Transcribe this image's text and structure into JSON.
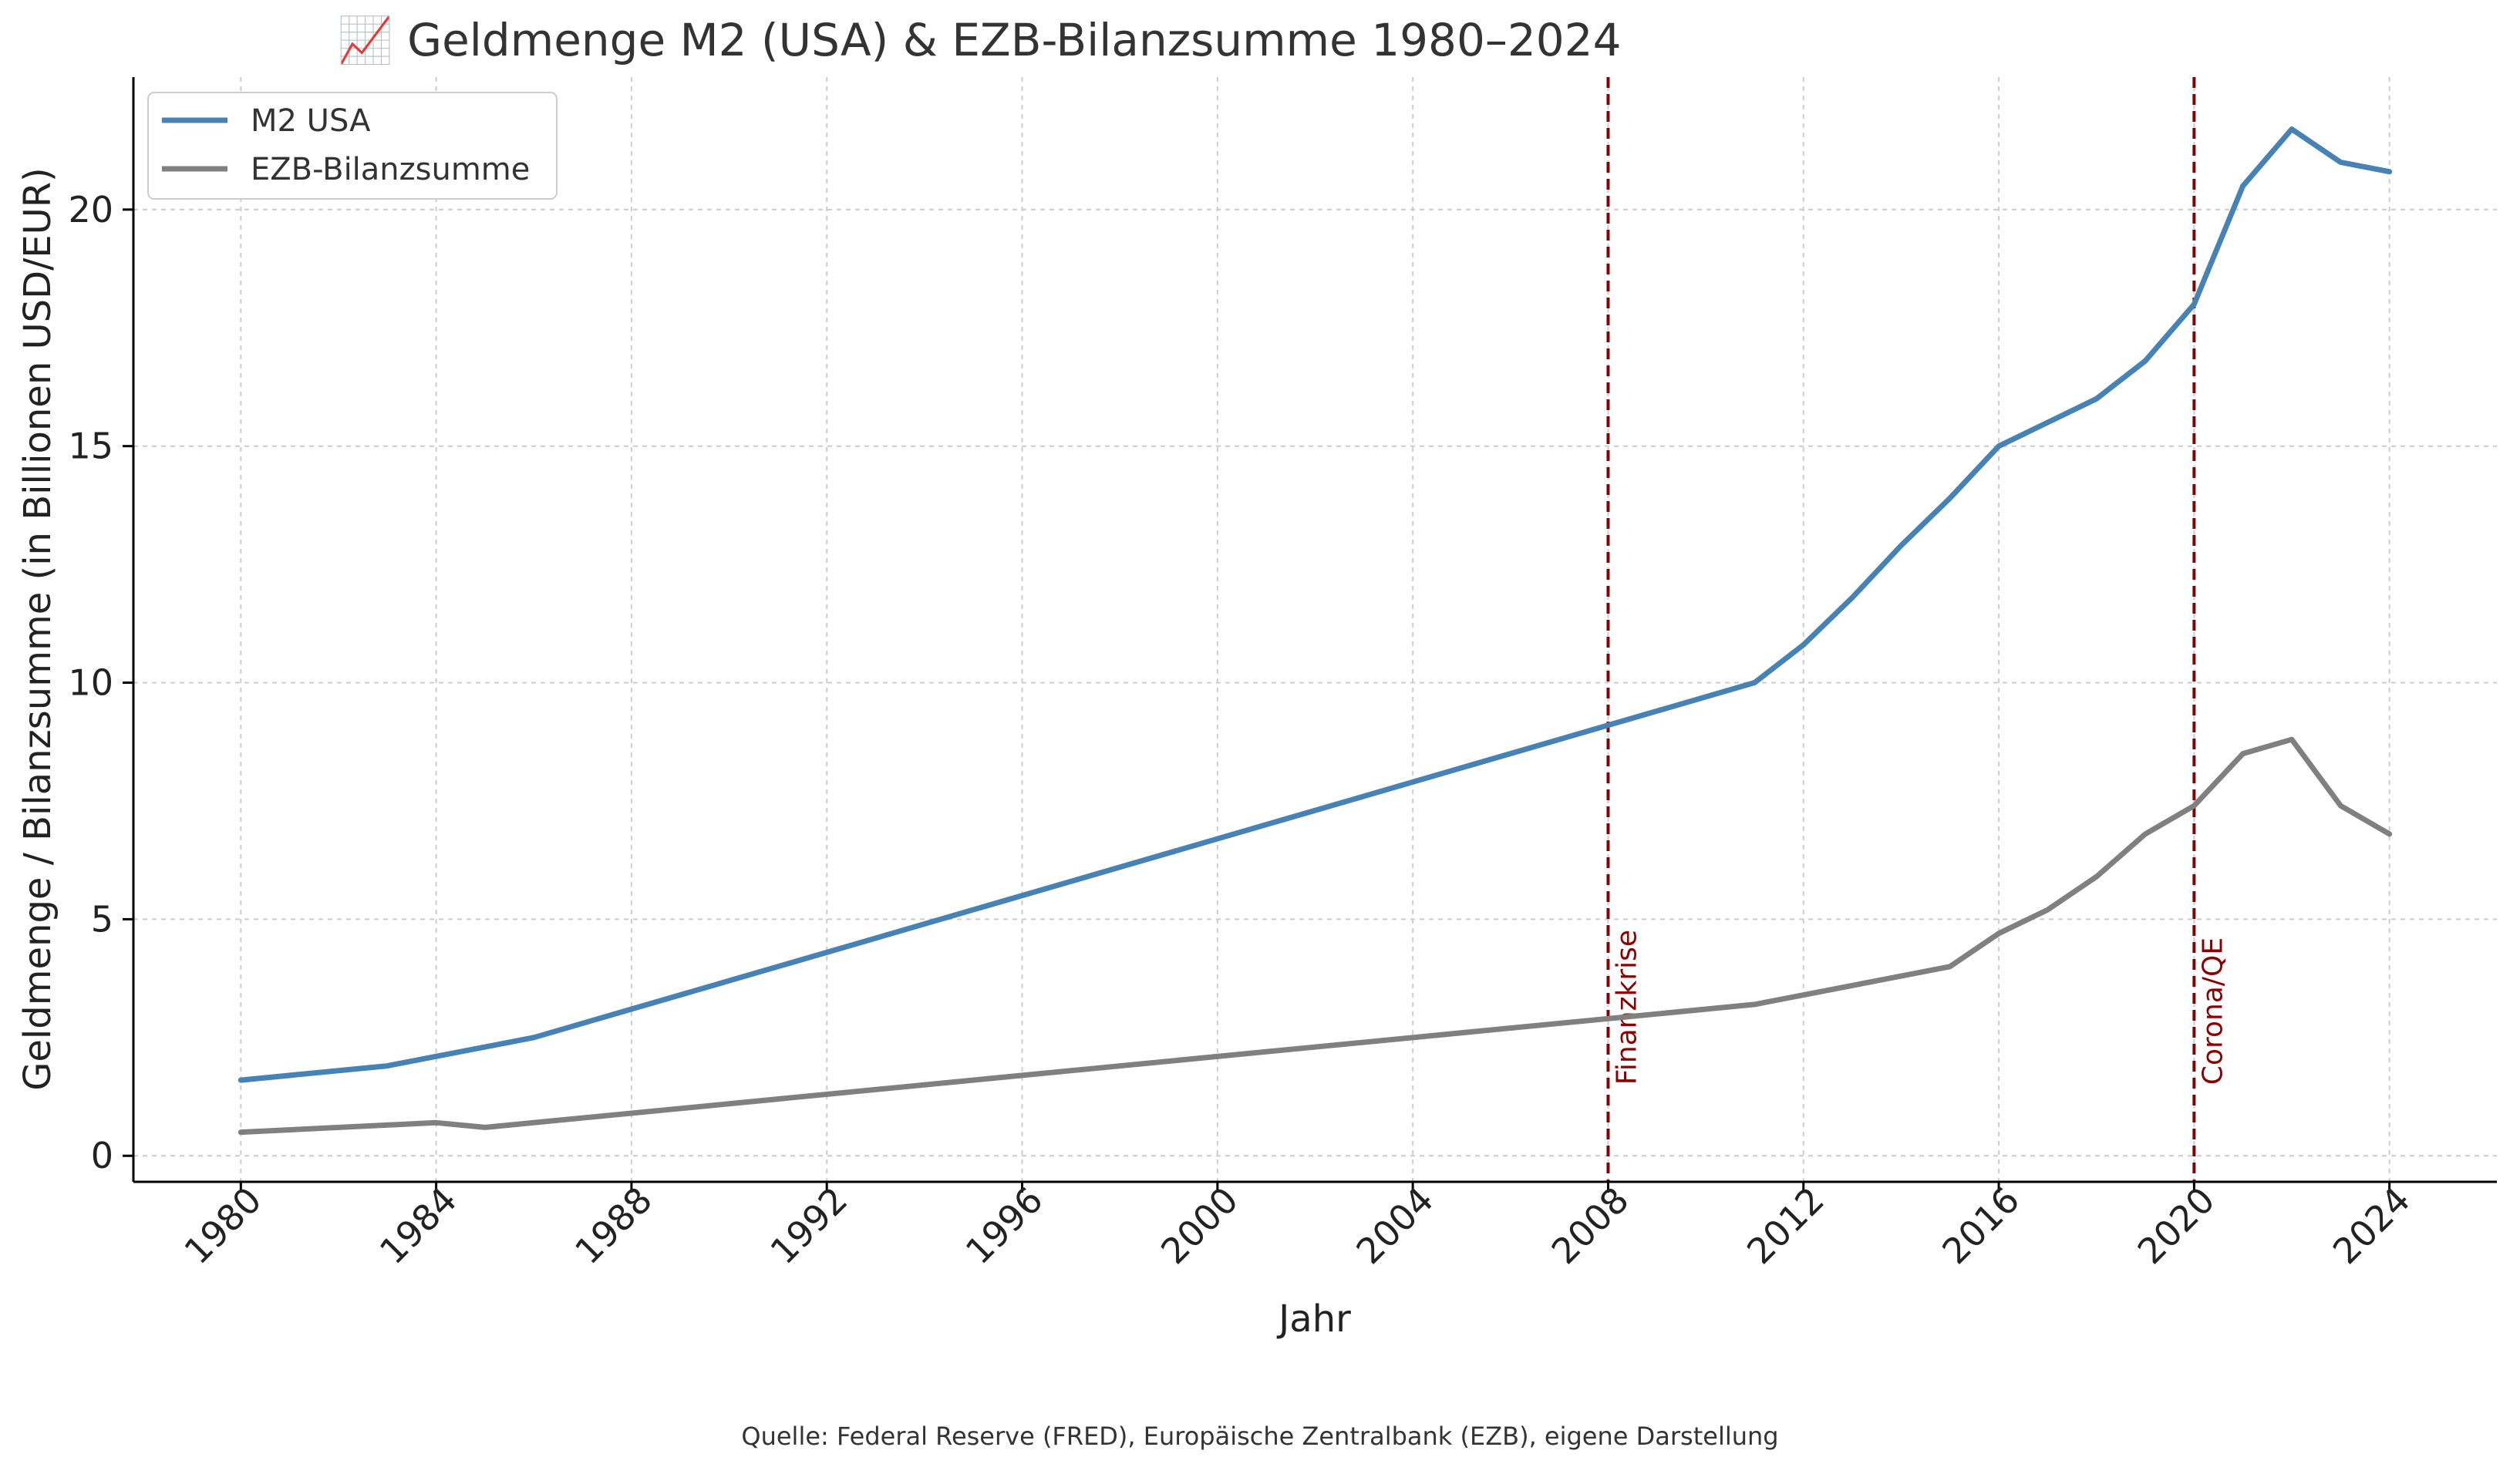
{
  "chart_data": {
    "type": "line",
    "title": "📈 Geldmenge M2 (USA) & EZB-Bilanzsumme 1980–2024",
    "xlabel": "Jahr",
    "ylabel": "Geldmenge / Bilanzsumme (in Billionen USD/EUR)",
    "xlim": [
      1977.8,
      2026.2
    ],
    "ylim": [
      -0.55,
      22.8
    ],
    "x_ticks": [
      1980,
      1984,
      1988,
      1992,
      1996,
      2000,
      2004,
      2008,
      2012,
      2016,
      2020,
      2024
    ],
    "y_ticks": [
      0,
      5,
      10,
      15,
      20
    ],
    "grid": true,
    "legend_position": "top-left",
    "series": [
      {
        "name": "M2 USA",
        "color": "#4682b4",
        "x": [
          1980,
          1983,
          1986,
          2011,
          2012,
          2013,
          2014,
          2015,
          2016,
          2017,
          2018,
          2019,
          2020,
          2021,
          2022,
          2023,
          2024
        ],
        "values": [
          1.6,
          1.9,
          2.5,
          10.0,
          10.8,
          11.8,
          12.9,
          13.9,
          15.0,
          15.5,
          16.0,
          16.8,
          18.0,
          20.5,
          21.7,
          21.0,
          20.8
        ]
      },
      {
        "name": "EZB-Bilanzsumme",
        "color": "#808080",
        "x": [
          1980,
          1984,
          1985,
          2011,
          2015,
          2016,
          2017,
          2018,
          2019,
          2020,
          2021,
          2022,
          2023,
          2024
        ],
        "values": [
          0.5,
          0.7,
          0.6,
          3.2,
          4.0,
          4.7,
          5.2,
          5.9,
          6.8,
          7.4,
          8.5,
          8.8,
          7.4,
          6.8
        ]
      }
    ],
    "annotations": [
      {
        "x": 2008,
        "label": "Finanzkrise",
        "color": "#8b0000"
      },
      {
        "x": 2020,
        "label": "Corona/QE",
        "color": "#8b0000"
      }
    ]
  },
  "source": "Quelle: Federal Reserve (FRED), Europäische Zentralbank (EZB), eigene Darstellung"
}
